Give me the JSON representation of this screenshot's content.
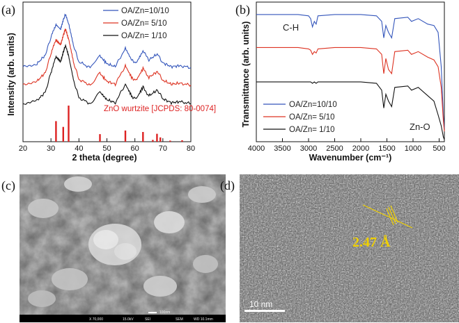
{
  "colors": {
    "series_blue": "#3355bb",
    "series_red": "#dd3322",
    "series_black": "#111111",
    "ref_red": "#dd2222",
    "tem_label": "#f0d000",
    "sem_bar": "#000000"
  },
  "panels": {
    "a": {
      "label": "(a)"
    },
    "b": {
      "label": "(b)"
    },
    "c": {
      "label": "(c)"
    },
    "d": {
      "label": "(d)"
    }
  },
  "chart_data": [
    {
      "id": "a",
      "type": "line",
      "title": "",
      "xlabel": "2 theta (degree)",
      "ylabel": "Intensity (arb. units)",
      "xlim": [
        20,
        80
      ],
      "xticks": [
        20,
        30,
        40,
        50,
        60,
        70,
        80
      ],
      "legend_position": "top-right",
      "series": [
        {
          "name": "OA/Zn=10/10",
          "color": "#3355bb",
          "x": [
            20,
            25,
            28,
            30,
            31.8,
            33.5,
            34.4,
            35.2,
            36.3,
            38,
            40,
            44,
            47.5,
            50,
            53,
            56.6,
            59,
            60.5,
            62.9,
            65,
            68,
            70,
            73,
            76,
            80
          ],
          "y": [
            0.4,
            0.43,
            0.52,
            0.7,
            0.84,
            0.79,
            0.88,
            0.94,
            0.84,
            0.62,
            0.45,
            0.39,
            0.51,
            0.43,
            0.4,
            0.59,
            0.46,
            0.44,
            0.56,
            0.47,
            0.53,
            0.44,
            0.4,
            0.41,
            0.39
          ]
        },
        {
          "name": "OA/Zn=  5/10",
          "color": "#dd3322",
          "x": [
            20,
            25,
            28,
            30,
            31.8,
            33.5,
            34.4,
            35.2,
            36.3,
            38,
            40,
            44,
            47.5,
            50,
            53,
            56.6,
            59,
            60.5,
            62.9,
            65,
            68,
            70,
            73,
            76,
            80
          ],
          "y": [
            0.22,
            0.25,
            0.34,
            0.53,
            0.68,
            0.63,
            0.72,
            0.79,
            0.68,
            0.45,
            0.27,
            0.21,
            0.33,
            0.25,
            0.22,
            0.41,
            0.28,
            0.26,
            0.38,
            0.29,
            0.35,
            0.26,
            0.22,
            0.23,
            0.21
          ]
        },
        {
          "name": "OA/Zn=  1/10",
          "color": "#111111",
          "x": [
            20,
            25,
            28,
            30,
            31.8,
            33.5,
            34.4,
            35.2,
            36.3,
            38,
            40,
            44,
            47.5,
            50,
            53,
            56.6,
            59,
            60.5,
            62.9,
            65,
            68,
            70,
            73,
            76,
            80
          ],
          "y": [
            0.02,
            0.05,
            0.14,
            0.34,
            0.5,
            0.45,
            0.55,
            0.62,
            0.51,
            0.27,
            0.08,
            0.02,
            0.14,
            0.06,
            0.03,
            0.22,
            0.09,
            0.07,
            0.19,
            0.1,
            0.16,
            0.07,
            0.03,
            0.04,
            0.02
          ]
        }
      ],
      "reference": {
        "name": "ZnO wurtzite [JCPDS: 80-0074]",
        "color": "#dd2222",
        "x": [
          31.8,
          34.4,
          36.3,
          47.5,
          56.6,
          62.9,
          66.4,
          67.9,
          69.1,
          72.6,
          76.9
        ],
        "height": [
          0.57,
          0.41,
          1.0,
          0.21,
          0.31,
          0.27,
          0.05,
          0.22,
          0.12,
          0.03,
          0.04
        ]
      }
    },
    {
      "id": "b",
      "type": "line",
      "title": "",
      "xlabel": "Wavenumber (cm⁻¹)",
      "ylabel": "Transmittance (arb. units)",
      "xlim": [
        4000,
        400
      ],
      "xticks": [
        4000,
        3500,
        3000,
        2500,
        2000,
        1500,
        1000,
        500
      ],
      "legend_position": "bottom-left",
      "annotations": [
        "C-H",
        "Zn-O"
      ],
      "baseline_offsets": {
        "OA/Zn=10/10": 0.93,
        "OA/Zn=  5/10": 0.69,
        "OA/Zn=  1/10": 0.44
      },
      "series": [
        {
          "name": "OA/Zn=10/10",
          "color": "#3355bb",
          "x": [
            4000,
            3200,
            3000,
            2960,
            2925,
            2890,
            2855,
            2820,
            2500,
            2000,
            1700,
            1600,
            1560,
            1520,
            1470,
            1410,
            1350,
            1100,
            1030,
            900,
            720,
            600,
            520,
            460,
            420,
            400
          ],
          "y": [
            0.93,
            0.93,
            0.92,
            0.9,
            0.84,
            0.88,
            0.86,
            0.92,
            0.93,
            0.93,
            0.92,
            0.88,
            0.76,
            0.85,
            0.8,
            0.76,
            0.9,
            0.91,
            0.88,
            0.9,
            0.86,
            0.85,
            0.8,
            0.55,
            0.2,
            0.1
          ]
        },
        {
          "name": "OA/Zn=  5/10",
          "color": "#dd3322",
          "x": [
            4000,
            3200,
            3000,
            2960,
            2925,
            2890,
            2855,
            2820,
            2500,
            2000,
            1700,
            1600,
            1560,
            1520,
            1470,
            1410,
            1350,
            1100,
            1030,
            900,
            720,
            600,
            520,
            460,
            420,
            400
          ],
          "y": [
            0.69,
            0.69,
            0.68,
            0.67,
            0.64,
            0.66,
            0.65,
            0.68,
            0.69,
            0.69,
            0.68,
            0.64,
            0.5,
            0.61,
            0.53,
            0.5,
            0.66,
            0.67,
            0.64,
            0.66,
            0.62,
            0.6,
            0.55,
            0.4,
            0.16,
            0.08
          ]
        },
        {
          "name": "OA/Zn=  1/10",
          "color": "#111111",
          "x": [
            4000,
            3200,
            3000,
            2960,
            2925,
            2890,
            2855,
            2820,
            2500,
            2000,
            1700,
            1600,
            1560,
            1520,
            1470,
            1410,
            1350,
            1100,
            1030,
            900,
            720,
            600,
            520,
            460,
            420,
            400
          ],
          "y": [
            0.44,
            0.44,
            0.44,
            0.44,
            0.43,
            0.44,
            0.43,
            0.44,
            0.44,
            0.44,
            0.43,
            0.38,
            0.25,
            0.35,
            0.3,
            0.26,
            0.4,
            0.41,
            0.38,
            0.4,
            0.34,
            0.3,
            0.2,
            0.12,
            0.04,
            0.02
          ]
        }
      ]
    }
  ],
  "images": {
    "sem": {
      "scale_label": "100nm",
      "info_bar": [
        "X 70,000",
        "15.0kV",
        "SEI",
        "SEM",
        "WD 10.1mm"
      ]
    },
    "tem": {
      "d_spacing_label": "2.47 Å",
      "scale_label": "10  nm"
    }
  }
}
